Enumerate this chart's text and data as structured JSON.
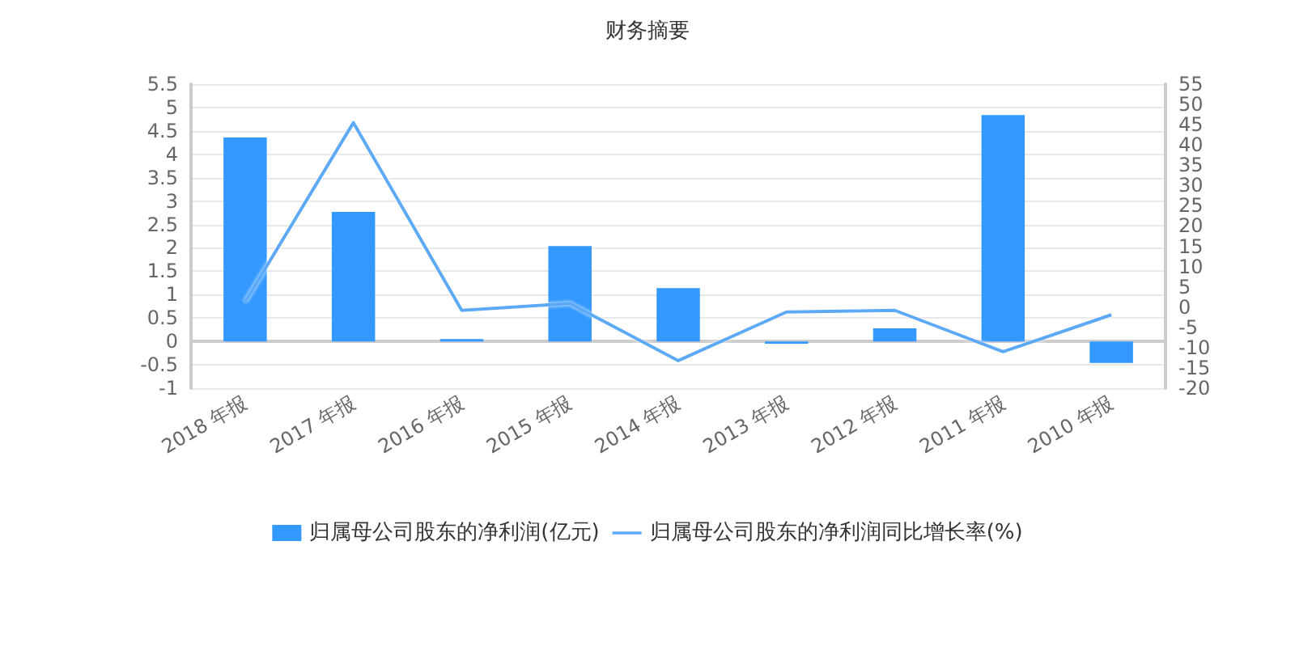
{
  "chart_data": {
    "type": "bar",
    "title": "财务摘要",
    "categories": [
      "2018 年报",
      "2017 年报",
      "2016 年报",
      "2015 年报",
      "2014 年报",
      "2013 年报",
      "2012 年报",
      "2011 年报",
      "2010 年报"
    ],
    "series": [
      {
        "name": "归属母公司股东的净利润(亿元)",
        "color": "#3399ff",
        "values": [
          4.36,
          2.77,
          0.05,
          2.04,
          1.14,
          -0.05,
          0.28,
          4.84,
          -0.46
        ]
      },
      {
        "name": "归属母公司股东的净利润同比增长率(%)",
        "type": "line",
        "axis": "y2",
        "color": "#5aaaf8",
        "values": [
          1.3,
          45.5,
          -0.8,
          0.9,
          -13.2,
          -1.2,
          -0.8,
          -11,
          -1.9
        ]
      }
    ],
    "ylim": [
      -1,
      5.5
    ],
    "yticks": [
      -1,
      -0.5,
      0,
      0.5,
      1,
      1.5,
      2,
      2.5,
      3,
      3.5,
      4,
      4.5,
      5,
      5.5
    ],
    "y2lim": [
      -20,
      55
    ],
    "y2ticks": [
      -20,
      -15,
      -10,
      -5,
      0,
      5,
      10,
      15,
      20,
      25,
      30,
      35,
      40,
      45,
      50,
      55
    ],
    "grid": "y",
    "legend": "bottom",
    "marker": "none",
    "line_style": "solid"
  }
}
